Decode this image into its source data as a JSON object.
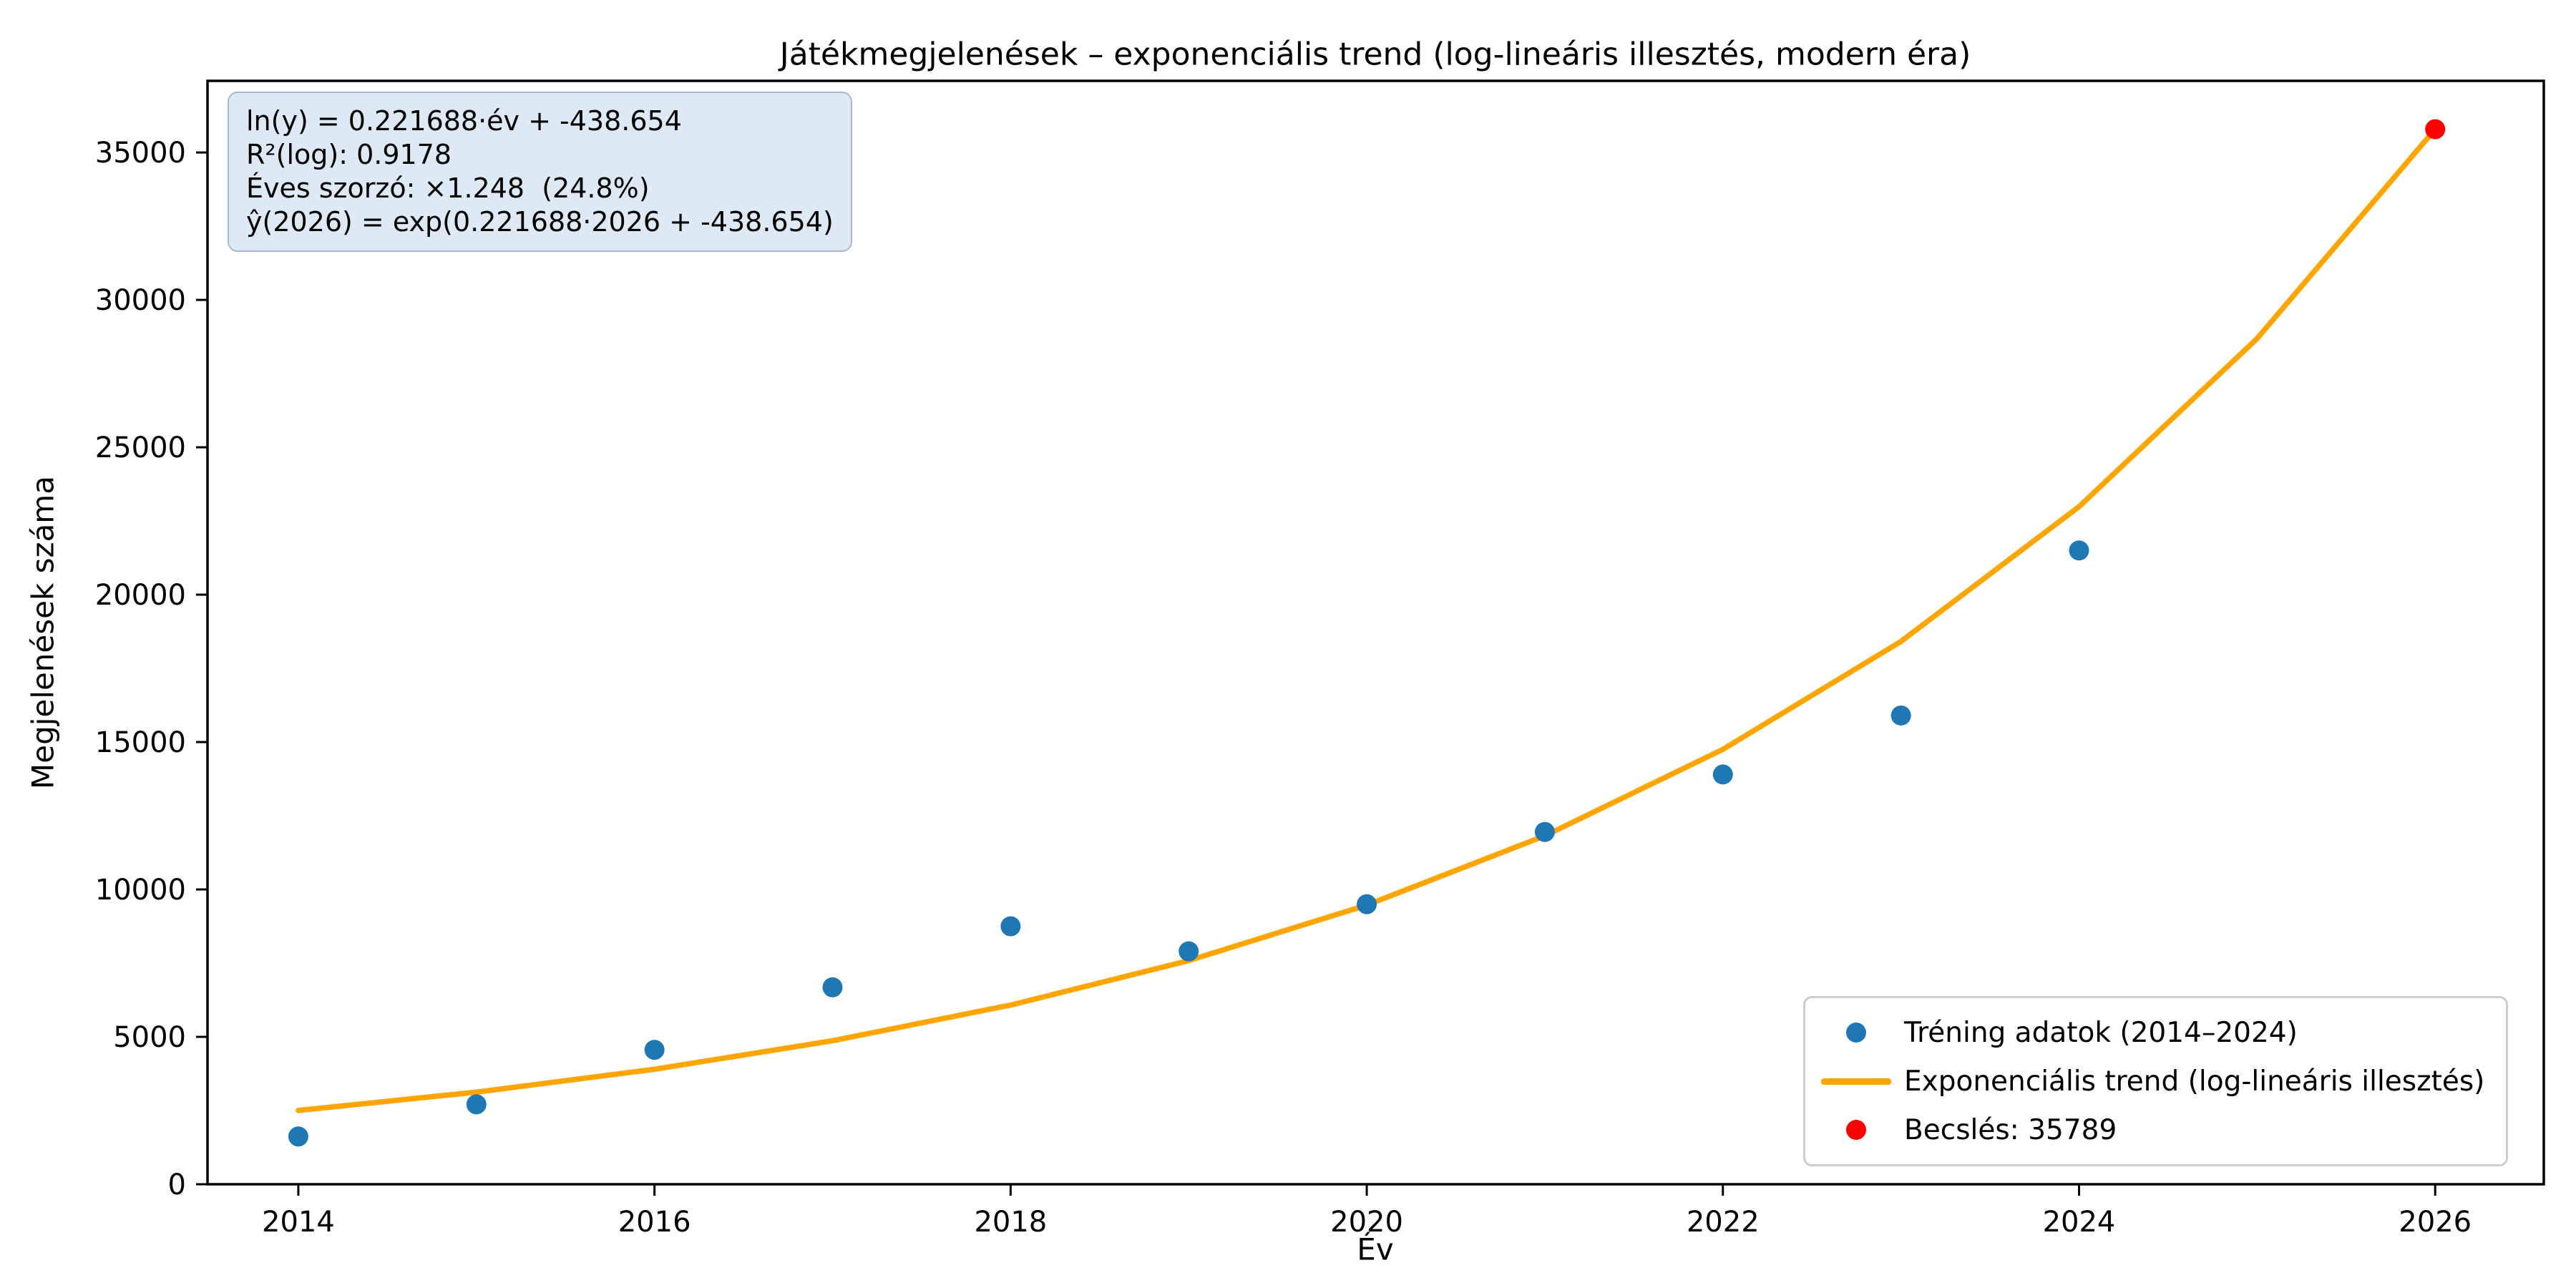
{
  "title": "Játékmegjelenések – exponenciális trend (log-lineáris illesztés, modern éra)",
  "axes": {
    "xlabel": "Év",
    "ylabel": "Megjelenések száma"
  },
  "annotation": {
    "lines": [
      "ln(y) = 0.221688·év + -438.654",
      "R²(log): 0.9178",
      "Éves szorzó: ×1.248  (24.8%)",
      "ŷ(2026) = exp(0.221688·2026 + -438.654)"
    ]
  },
  "legend": {
    "items": [
      {
        "marker": "dot",
        "label": "Tréning adatok (2014–2024)"
      },
      {
        "marker": "line",
        "label": "Exponenciális trend (log-lineáris illesztés)"
      },
      {
        "marker": "dot",
        "label": "Becslés: 35789"
      }
    ],
    "position": "lower right"
  },
  "colors": {
    "training": "#1f77b4",
    "trend": "#ffa500",
    "estimate": "#ff0000",
    "annotation_bg": "#dde9f4",
    "spine": "#000000"
  },
  "chart_data": {
    "type": "scatter",
    "title": "Játékmegjelenések – exponenciális trend (log-lineáris illesztés, modern éra)",
    "xlabel": "Év",
    "ylabel": "Megjelenések száma",
    "xlim": [
      2013.49,
      2026.61
    ],
    "ylim": [
      0,
      37430
    ],
    "xticks": [
      2014,
      2016,
      2018,
      2020,
      2022,
      2024,
      2026
    ],
    "yticks": [
      0,
      5000,
      10000,
      15000,
      20000,
      25000,
      30000,
      35000
    ],
    "grid": false,
    "legend_position": "lower right",
    "series": [
      {
        "name": "Tréning adatok (2014–2024)",
        "type": "scatter",
        "color": "#1f77b4",
        "x": [
          2014,
          2015,
          2016,
          2017,
          2018,
          2019,
          2020,
          2021,
          2022,
          2023,
          2024
        ],
        "y": [
          1620,
          2710,
          4560,
          6680,
          8750,
          7900,
          9500,
          11950,
          13900,
          15900,
          21500
        ]
      },
      {
        "name": "Exponenciális trend (log-lineáris illesztés)",
        "type": "line",
        "color": "#ffa500",
        "x": [
          2014,
          2015,
          2016,
          2017,
          2018,
          2019,
          2020,
          2021,
          2022,
          2023,
          2024,
          2025,
          2026
        ],
        "y": [
          2504,
          3125,
          3901,
          4869,
          6078,
          7586,
          9469,
          11820,
          14753,
          18414,
          22985,
          28689,
          35789
        ]
      },
      {
        "name": "Becslés: 35789",
        "type": "scatter",
        "color": "#ff0000",
        "x": [
          2026
        ],
        "y": [
          35789
        ]
      }
    ],
    "fit": {
      "slope": 0.221688,
      "intercept": -438.654,
      "r2_log": 0.9178,
      "annual_multiplier": 1.248,
      "annual_growth_pct": 24.8,
      "prediction_year": 2026,
      "prediction_value": 35789
    }
  }
}
